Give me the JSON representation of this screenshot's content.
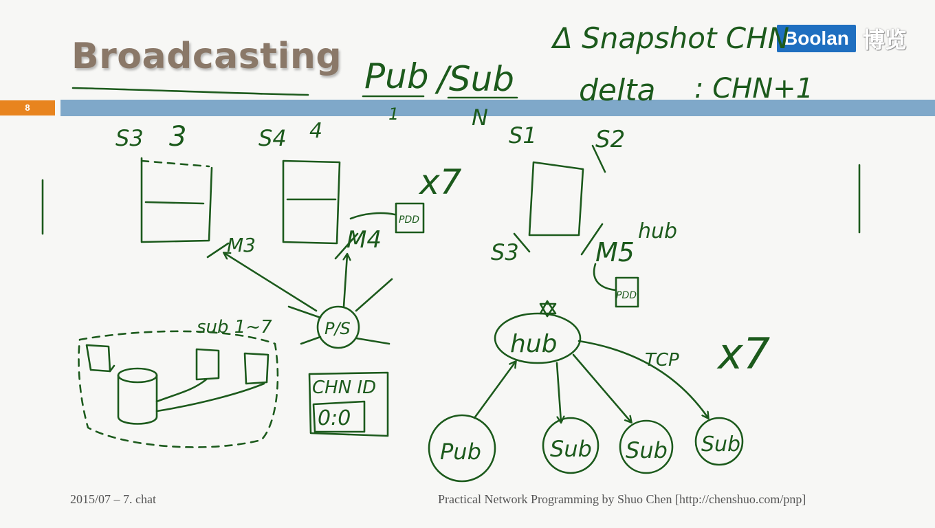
{
  "slide": {
    "title": "Broadcasting",
    "number": "8"
  },
  "brand": {
    "name": "Boolan",
    "cn": "博览",
    "accent": "#1f6fc0"
  },
  "footer": {
    "left": "2015/07 – 7. chat",
    "right": "Practical Network Programming by Shuo Chen [http://chenshuo.com/pnp]"
  },
  "handwriting": {
    "top": {
      "pub": "Pub",
      "sub": "/Sub",
      "pub_count": "1",
      "sub_count": "N",
      "snapshot": "Δ Snapshot CHN",
      "delta_label": "delta",
      "delta_value": ": CHN+1"
    },
    "servers": {
      "s3": "S3",
      "s3_count": "3",
      "s4": "S4",
      "s4_count": "4",
      "s1": "S1",
      "s2": "S2",
      "s3_right": "S3",
      "times_7": "x7"
    },
    "machines": {
      "m3": "M3",
      "m4": "M4",
      "m5": "M5",
      "hub_note": "hub",
      "pdd_a": "PDD",
      "pdd_b": "PDD",
      "ps": "P/S"
    },
    "subs_group": {
      "label": "sub 1~7"
    },
    "chn_box": {
      "title": "CHN ID",
      "value": "0:0"
    },
    "hub_tree": {
      "hub": "hub",
      "tcp": "TCP",
      "times_7": "x7",
      "pub": "Pub",
      "sub_1": "Sub",
      "sub_2": "Sub",
      "sub_3": "Sub"
    }
  },
  "colors": {
    "ink": "#1c5a1c",
    "title": "#8a7868",
    "bar": "#7fa8c9",
    "slide_number_bg": "#e8841e"
  }
}
